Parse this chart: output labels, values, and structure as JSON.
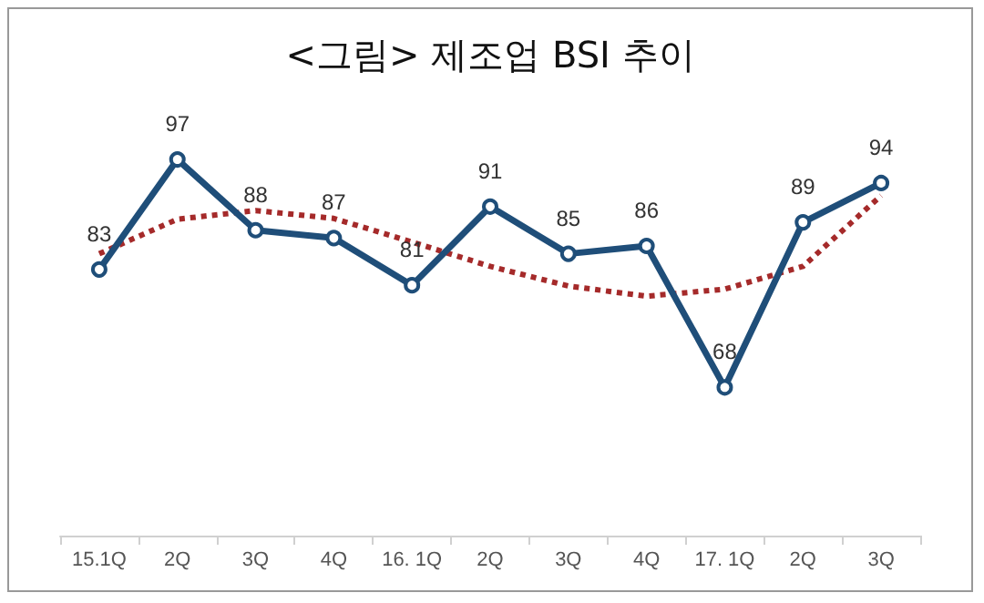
{
  "chart_data": {
    "type": "line",
    "title": "<그림> 제조업 BSI 추이",
    "categories": [
      "15.1Q",
      "2Q",
      "3Q",
      "4Q",
      "16. 1Q",
      "2Q",
      "3Q",
      "4Q",
      "17. 1Q",
      "2Q",
      "3Q"
    ],
    "series": [
      {
        "color": "#1f4e79",
        "values": [
          83,
          97,
          88,
          87,
          81,
          91,
          85,
          86,
          68,
          89,
          94
        ],
        "marker": "circle",
        "line_style": "solid",
        "data_labels": true
      },
      {
        "color": "#a52a2a",
        "values": [
          85,
          89.4,
          90.5,
          89.5,
          86.5,
          83.4,
          80.9,
          79.6,
          80.5,
          83.4,
          92.4
        ],
        "marker": "none",
        "line_style": "dotted"
      }
    ],
    "tick_labels": "x",
    "grid": false
  }
}
